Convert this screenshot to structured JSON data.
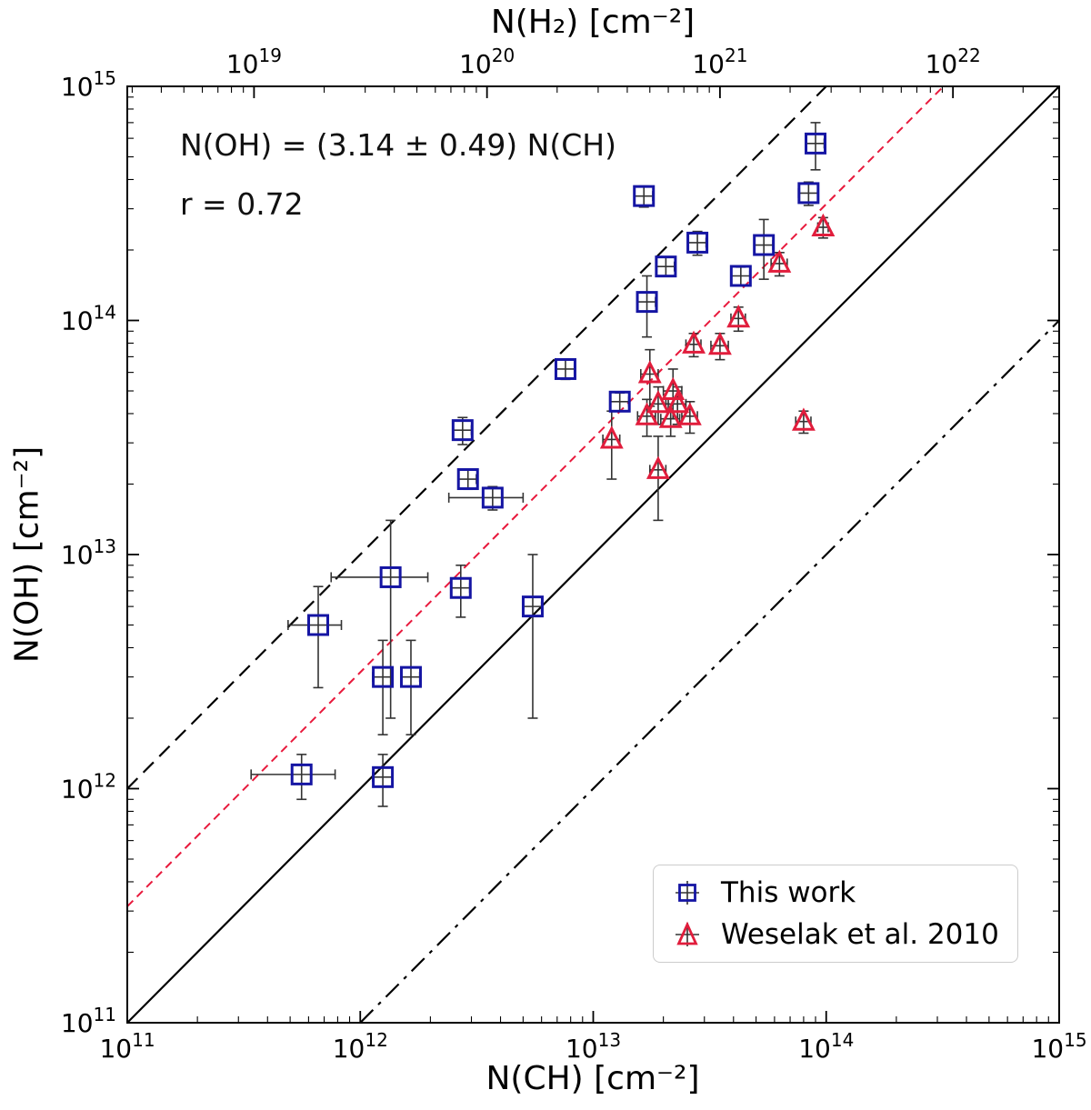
{
  "chart_data": {
    "type": "scatter",
    "title": "",
    "xlabel": "N(CH) [cm⁻²]",
    "ylabel": "N(OH) [cm⁻²]",
    "top_xlabel": "N(H₂) [cm⁻²]",
    "x_scale": "log",
    "y_scale": "log",
    "xlim_exponents": [
      11,
      15
    ],
    "ylim_exponents": [
      11,
      15
    ],
    "x_tick_exponents": [
      11,
      12,
      13,
      14,
      15
    ],
    "y_tick_exponents": [
      11,
      12,
      13,
      14,
      15
    ],
    "top_tick_exponents": [
      19,
      20,
      21,
      22
    ],
    "top_axis_log_offset": 7.456,
    "grid": false,
    "legend_position": "lower right",
    "annotation": {
      "line1": "N(OH) = (3.14 ± 0.49) N(CH)",
      "line2": "r = 0.72"
    },
    "error_bar_color": "#333333",
    "lines": [
      {
        "name": "10-to-1",
        "factor": 10,
        "color": "#000000",
        "dash": "16 9",
        "width": 2.2
      },
      {
        "name": "fit-3.14-to-1",
        "factor": 3.14,
        "color": "#e8193c",
        "dash": "9 6",
        "width": 2.0
      },
      {
        "name": "1-to-1",
        "factor": 1,
        "color": "#000000",
        "dash": "none",
        "width": 2.2
      },
      {
        "name": "1-to-10",
        "factor": 0.1,
        "color": "#000000",
        "dash": "20 8 4 8",
        "width": 2.2
      }
    ],
    "series": [
      {
        "name": "This work",
        "marker": "square",
        "color": "#1515a3",
        "points": [
          {
            "x": 90000000000000.0,
            "y": 570000000000000.0,
            "ex": 8000000000000.0,
            "ey": 130000000000000.0
          },
          {
            "x": 16500000000000.0,
            "y": 340000000000000.0,
            "ex": 1500000000000.0,
            "ey": 35000000000000.0
          },
          {
            "x": 84000000000000.0,
            "y": 350000000000000.0,
            "ex": 8000000000000.0,
            "ey": 40000000000000.0
          },
          {
            "x": 28000000000000.0,
            "y": 215000000000000.0,
            "ex": 2500000000000.0,
            "ey": 25000000000000.0
          },
          {
            "x": 54000000000000.0,
            "y": 210000000000000.0,
            "ex": 5000000000000.0,
            "ey": 60000000000000.0
          },
          {
            "x": 20500000000000.0,
            "y": 170000000000000.0,
            "ex": 1800000000000.0,
            "ey": 16000000000000.0
          },
          {
            "x": 43000000000000.0,
            "y": 155000000000000.0,
            "ex": 4000000000000.0,
            "ey": 14000000000000.0
          },
          {
            "x": 17000000000000.0,
            "y": 120000000000000.0,
            "ex": 1500000000000.0,
            "ey": 35000000000000.0
          },
          {
            "x": 7600000000000.0,
            "y": 62000000000000.0,
            "ex": 700000000000.0,
            "ey": 6000000000000.0
          },
          {
            "x": 13000000000000.0,
            "y": 45000000000000.0,
            "ex": 1200000000000.0,
            "ey": 4000000000000.0
          },
          {
            "x": 2750000000000.0,
            "y": 34000000000000.0,
            "ex": 250000000000.0,
            "ey": 4500000000000.0
          },
          {
            "x": 2900000000000.0,
            "y": 21000000000000.0,
            "ex": 250000000000.0,
            "ey": 2000000000000.0
          },
          {
            "x": 3700000000000.0,
            "y": 17500000000000.0,
            "ex": 1300000000000.0,
            "ey": 2000000000000.0
          },
          {
            "x": 1350000000000.0,
            "y": 8000000000000.0,
            "ex": 600000000000.0,
            "ey": 6000000000000.0
          },
          {
            "x": 2700000000000.0,
            "y": 7200000000000.0,
            "ex": 250000000000.0,
            "ey": 1800000000000.0
          },
          {
            "x": 5500000000000.0,
            "y": 6000000000000.0,
            "ex": 500000000000.0,
            "ey": 4000000000000.0
          },
          {
            "x": 660000000000.0,
            "y": 5000000000000.0,
            "ex": 170000000000.0,
            "ey": 2300000000000.0
          },
          {
            "x": 1250000000000.0,
            "y": 3000000000000.0,
            "ex": 120000000000.0,
            "ey": 1300000000000.0
          },
          {
            "x": 1650000000000.0,
            "y": 3000000000000.0,
            "ex": 150000000000.0,
            "ey": 1300000000000.0
          },
          {
            "x": 560000000000.0,
            "y": 1150000000000.0,
            "ex": 220000000000.0,
            "ey": 250000000000.0
          },
          {
            "x": 1250000000000.0,
            "y": 1120000000000.0,
            "ex": 120000000000.0,
            "ey": 280000000000.0
          }
        ]
      },
      {
        "name": "Weselak et al. 2010",
        "marker": "triangle",
        "color": "#e11d3c",
        "points": [
          {
            "x": 97000000000000.0,
            "y": 250000000000000.0,
            "ex": 5000000000000.0,
            "ey": 25000000000000.0
          },
          {
            "x": 63000000000000.0,
            "y": 175000000000000.0,
            "ex": 5000000000000.0,
            "ey": 20000000000000.0
          },
          {
            "x": 42000000000000.0,
            "y": 102000000000000.0,
            "ex": 3000000000000.0,
            "ey": 12000000000000.0
          },
          {
            "x": 27000000000000.0,
            "y": 79000000000000.0,
            "ex": 2000000000000.0,
            "ey": 9000000000000.0
          },
          {
            "x": 35000000000000.0,
            "y": 78000000000000.0,
            "ex": 3000000000000.0,
            "ey": 10000000000000.0
          },
          {
            "x": 17500000000000.0,
            "y": 59000000000000.0,
            "ex": 1500000000000.0,
            "ey": 16000000000000.0
          },
          {
            "x": 22000000000000.0,
            "y": 50000000000000.0,
            "ex": 2000000000000.0,
            "ey": 12000000000000.0
          },
          {
            "x": 19000000000000.0,
            "y": 44000000000000.0,
            "ex": 1500000000000.0,
            "ey": 8000000000000.0
          },
          {
            "x": 23000000000000.0,
            "y": 44000000000000.0,
            "ex": 2000000000000.0,
            "ey": 8000000000000.0
          },
          {
            "x": 17000000000000.0,
            "y": 39000000000000.0,
            "ex": 1500000000000.0,
            "ey": 7000000000000.0
          },
          {
            "x": 21500000000000.0,
            "y": 38000000000000.0,
            "ex": 2000000000000.0,
            "ey": 6000000000000.0
          },
          {
            "x": 26000000000000.0,
            "y": 39000000000000.0,
            "ex": 2000000000000.0,
            "ey": 6000000000000.0
          },
          {
            "x": 12000000000000.0,
            "y": 31000000000000.0,
            "ex": 1000000000000.0,
            "ey": 10000000000000.0
          },
          {
            "x": 80000000000000.0,
            "y": 37000000000000.0,
            "ex": 6000000000000.0,
            "ey": 4000000000000.0
          },
          {
            "x": 19000000000000.0,
            "y": 23000000000000.0,
            "ex": 1500000000000.0,
            "ey": 9000000000000.0
          }
        ]
      }
    ]
  }
}
